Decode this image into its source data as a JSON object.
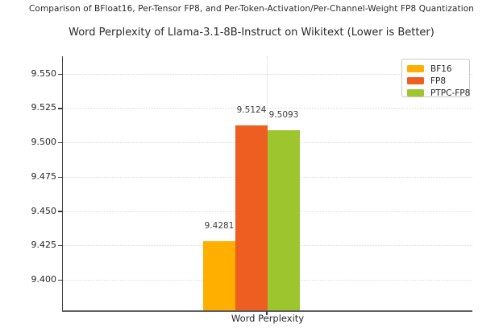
{
  "chart_data": {
    "type": "bar",
    "suptitle": "Comparison of BFloat16, Per-Tensor FP8, and Per-Token-Activation/Per-Channel-Weight FP8 Quantization",
    "title": "Word Perplexity of Llama-3.1-8B-Instruct on Wikitext (Lower is Better)",
    "categories": [
      "Word Perplexity"
    ],
    "series": [
      {
        "name": "BF16",
        "color": "#ffaf00",
        "values": [
          9.4281
        ]
      },
      {
        "name": "FP8",
        "color": "#ed5e20",
        "values": [
          9.5124
        ]
      },
      {
        "name": "PTPC-FP8",
        "color": "#9cc52e",
        "values": [
          9.5093
        ]
      }
    ],
    "value_labels": [
      "9.4281",
      "9.5124",
      "9.5093"
    ],
    "xlabel": "Word Perplexity",
    "ylabel": "",
    "ylim": [
      9.378,
      9.563
    ],
    "yticks": [
      9.4,
      9.425,
      9.45,
      9.475,
      9.5,
      9.525,
      9.55
    ],
    "grid": true,
    "gridline_style": "dotted",
    "gridline_color": "#d9d9d9",
    "legend_position": "upper right",
    "legend_entries": [
      "BF16",
      "FP8",
      "PTPC-FP8"
    ]
  }
}
